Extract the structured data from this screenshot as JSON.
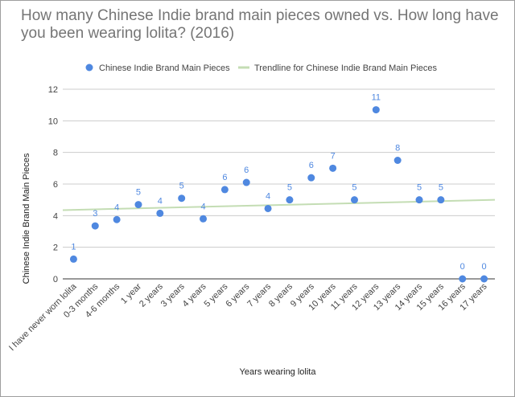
{
  "chart_data": {
    "type": "scatter",
    "title": "How many Chinese Indie brand main pieces owned vs. How long have you been wearing lolita? (2016)",
    "xlabel": "Years wearing lolita",
    "ylabel": "Chinese Indie Brand Main Pieces",
    "ylim": [
      0,
      12
    ],
    "yticks": [
      0,
      2,
      4,
      6,
      8,
      10,
      12
    ],
    "grid": true,
    "legend_position": "top",
    "colors": {
      "points": "#4f88e0",
      "trendline": "#c4ddb4",
      "labels": "#4f88e0"
    },
    "categories": [
      "I have never worn lolita",
      "0-3 months",
      "4-6 months",
      "1 year",
      "2 years",
      "3 years",
      "4 years",
      "5 years",
      "6 years",
      "7 years",
      "8 years",
      "9 years",
      "10 years",
      "11 years",
      "12 years",
      "13 years",
      "14 years",
      "15 years",
      "16 years",
      "17 years"
    ],
    "series": [
      {
        "name": "Chinese Indie Brand Main Pieces",
        "values": [
          1.25,
          3.35,
          3.75,
          4.7,
          4.15,
          5.1,
          3.8,
          5.65,
          6.1,
          4.45,
          5.0,
          6.4,
          7.0,
          5.0,
          10.7,
          7.5,
          5.0,
          5.0,
          0,
          0
        ],
        "labels": [
          "1",
          "3",
          "4",
          "5",
          "4",
          "5",
          "4",
          "6",
          "6",
          "4",
          "5",
          "6",
          "7",
          "5",
          "11",
          "8",
          "5",
          "5",
          "0",
          "0"
        ]
      }
    ],
    "trendline": {
      "name": "Trendline for Chinese Indie Brand Main Pieces",
      "start": 4.35,
      "end": 5.0
    }
  }
}
